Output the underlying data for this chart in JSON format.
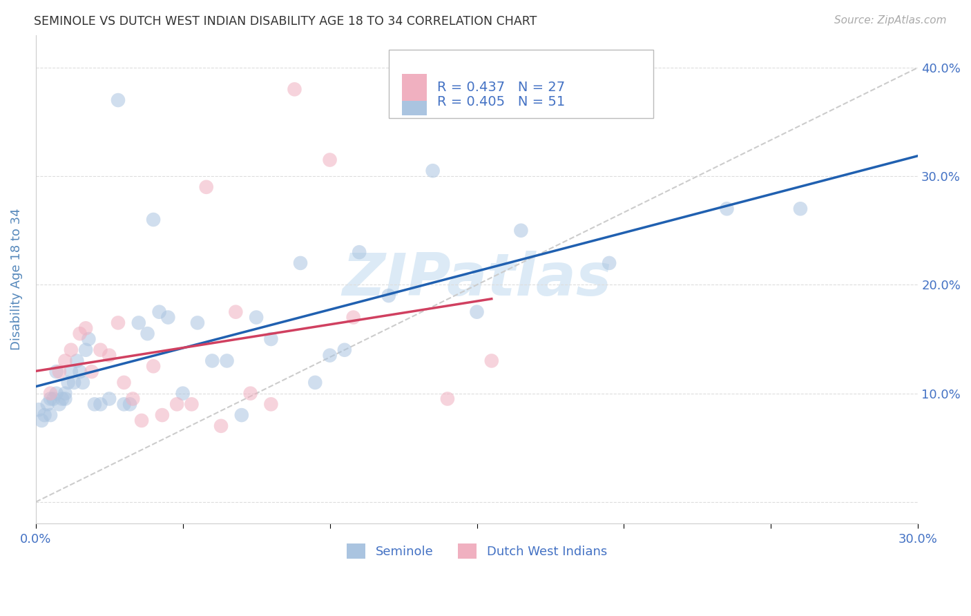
{
  "title": "SEMINOLE VS DUTCH WEST INDIAN DISABILITY AGE 18 TO 34 CORRELATION CHART",
  "source": "Source: ZipAtlas.com",
  "ylabel": "Disability Age 18 to 34",
  "xlim": [
    0.0,
    0.3
  ],
  "ylim": [
    -0.02,
    0.43
  ],
  "seminole_x": [
    0.001,
    0.002,
    0.003,
    0.004,
    0.005,
    0.005,
    0.006,
    0.007,
    0.007,
    0.008,
    0.009,
    0.01,
    0.01,
    0.011,
    0.012,
    0.013,
    0.014,
    0.015,
    0.016,
    0.017,
    0.018,
    0.02,
    0.022,
    0.025,
    0.028,
    0.03,
    0.032,
    0.035,
    0.038,
    0.04,
    0.042,
    0.045,
    0.05,
    0.055,
    0.06,
    0.065,
    0.07,
    0.075,
    0.08,
    0.09,
    0.095,
    0.1,
    0.105,
    0.11,
    0.12,
    0.135,
    0.15,
    0.165,
    0.195,
    0.235,
    0.26
  ],
  "seminole_y": [
    0.085,
    0.075,
    0.08,
    0.09,
    0.095,
    0.08,
    0.095,
    0.1,
    0.12,
    0.09,
    0.095,
    0.095,
    0.1,
    0.11,
    0.12,
    0.11,
    0.13,
    0.12,
    0.11,
    0.14,
    0.15,
    0.09,
    0.09,
    0.095,
    0.37,
    0.09,
    0.09,
    0.165,
    0.155,
    0.26,
    0.175,
    0.17,
    0.1,
    0.165,
    0.13,
    0.13,
    0.08,
    0.17,
    0.15,
    0.22,
    0.11,
    0.135,
    0.14,
    0.23,
    0.19,
    0.305,
    0.175,
    0.25,
    0.22,
    0.27,
    0.27
  ],
  "dutch_x": [
    0.005,
    0.008,
    0.01,
    0.012,
    0.015,
    0.017,
    0.019,
    0.022,
    0.025,
    0.028,
    0.03,
    0.033,
    0.036,
    0.04,
    0.043,
    0.048,
    0.053,
    0.058,
    0.063,
    0.068,
    0.073,
    0.08,
    0.088,
    0.1,
    0.108,
    0.14,
    0.155
  ],
  "dutch_y": [
    0.1,
    0.12,
    0.13,
    0.14,
    0.155,
    0.16,
    0.12,
    0.14,
    0.135,
    0.165,
    0.11,
    0.095,
    0.075,
    0.125,
    0.08,
    0.09,
    0.09,
    0.29,
    0.07,
    0.175,
    0.1,
    0.09,
    0.38,
    0.315,
    0.17,
    0.095,
    0.13
  ],
  "seminole_color": "#aac4e0",
  "seminole_color_line": "#2060b0",
  "dutch_color": "#f0b0c0",
  "dutch_color_line": "#d04060",
  "seminole_R": 0.405,
  "seminole_N": 51,
  "dutch_R": 0.437,
  "dutch_N": 27,
  "marker_size": 220,
  "marker_alpha": 0.55,
  "legend_r_color": "#4472c4",
  "reference_line_color": "#cccccc",
  "background_color": "#ffffff",
  "grid_color": "#dddddd",
  "title_color": "#333333",
  "axis_label_color": "#5588bb",
  "tick_color": "#4472c4",
  "watermark": "ZIPatlas",
  "watermark_color": "#c5ddf0"
}
